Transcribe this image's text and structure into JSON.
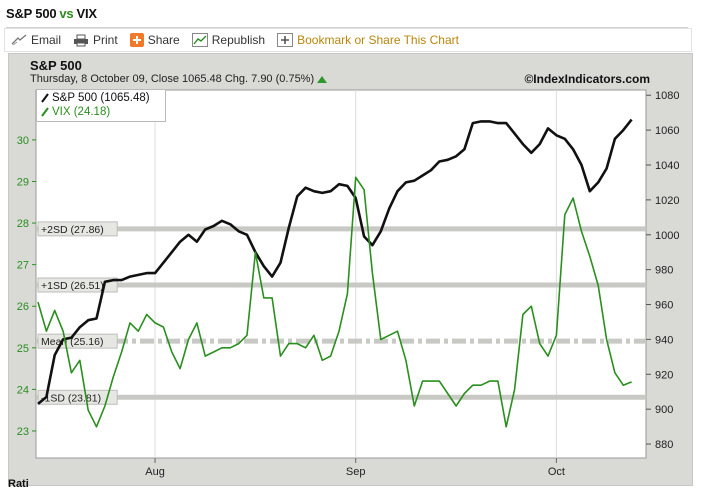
{
  "header": {
    "title_left": "S&P 500",
    "title_vs": "vs",
    "title_right": "VIX"
  },
  "toolbar": {
    "email": "Email",
    "print": "Print",
    "share": "Share",
    "republish": "Republish",
    "bookmark": "Bookmark or Share This Chart"
  },
  "chart_head": {
    "title": "S&P 500",
    "subtitle": "Thursday, 8 October 09, Close 1065.48 Chg. 7.90 (0.75%)",
    "brand": "©IndexIndicators.com"
  },
  "legend": {
    "sp500": "S&P 500 (1065.48)",
    "vix": "VIX (24.18)"
  },
  "footer": {
    "rating_text": "Rati"
  },
  "colors": {
    "sp500": "#111111",
    "vix": "#2a8f1f",
    "band": "#c8c8c4",
    "plot_bg": "#ffffff",
    "frame_bg": "#d9d9d6"
  },
  "chart_data": {
    "type": "line",
    "x_ticks": [
      "Aug",
      "Sep",
      "Oct"
    ],
    "y_left": {
      "label": "",
      "ticks": [
        23,
        24,
        25,
        26,
        27,
        28,
        29,
        30
      ],
      "range": [
        22.35,
        31.2
      ]
    },
    "y_right": {
      "label": "",
      "ticks": [
        880,
        900,
        920,
        940,
        960,
        980,
        1000,
        1020,
        1040,
        1060,
        1080
      ],
      "range": [
        872,
        1083
      ]
    },
    "bands": [
      {
        "label": "+2SD (27.86)",
        "value": 27.86,
        "style": "solid"
      },
      {
        "label": "+1SD (26.51)",
        "value": 26.51,
        "style": "solid"
      },
      {
        "label": "Mean (25.16)",
        "value": 25.16,
        "style": "dashed"
      },
      {
        "label": "-1SD (23.81)",
        "value": 23.81,
        "style": "solid"
      }
    ],
    "x_range": [
      0,
      72
    ],
    "x_tick_positions": [
      14,
      38,
      62
    ],
    "series": [
      {
        "name": "S&P 500",
        "axis": "right",
        "x": [
          0,
          1,
          2,
          3,
          4,
          5,
          6,
          7,
          8,
          9,
          10,
          11,
          12,
          13,
          14,
          15,
          16,
          17,
          18,
          19,
          20,
          21,
          22,
          23,
          24,
          25,
          26,
          27,
          28,
          29,
          30,
          31,
          32,
          33,
          34,
          35,
          36,
          37,
          38,
          39,
          40,
          41,
          42,
          43,
          44,
          45,
          46,
          47,
          48,
          49,
          50,
          51,
          52,
          53,
          54,
          55,
          56,
          57,
          58,
          59,
          60,
          61,
          62,
          63,
          64,
          65,
          66,
          67,
          68,
          69,
          70,
          71
        ],
        "values": [
          903,
          907,
          931,
          940,
          941,
          947,
          951,
          952,
          973,
          974,
          974,
          976,
          977,
          978,
          978,
          984,
          990,
          996,
          1000,
          996,
          1003,
          1005,
          1008,
          1006,
          1002,
          1000,
          990,
          982,
          976,
          984,
          1004,
          1022,
          1027,
          1025,
          1024,
          1025,
          1029,
          1028,
          1021,
          999,
          994,
          1002,
          1015,
          1025,
          1030,
          1031,
          1034,
          1037,
          1042,
          1043,
          1045,
          1049,
          1064,
          1065,
          1065,
          1064,
          1064,
          1058,
          1052,
          1047,
          1052,
          1061,
          1057,
          1055,
          1049,
          1040,
          1025,
          1030,
          1038,
          1055,
          1060,
          1066
        ]
      },
      {
        "name": "VIX",
        "axis": "left",
        "x": [
          0,
          1,
          2,
          3,
          4,
          5,
          6,
          7,
          8,
          9,
          10,
          11,
          12,
          13,
          14,
          15,
          16,
          17,
          18,
          19,
          20,
          21,
          22,
          23,
          24,
          25,
          26,
          27,
          28,
          29,
          30,
          31,
          32,
          33,
          34,
          35,
          36,
          37,
          38,
          39,
          40,
          41,
          42,
          43,
          44,
          45,
          46,
          47,
          48,
          49,
          50,
          51,
          52,
          53,
          54,
          55,
          56,
          57,
          58,
          59,
          60,
          61,
          62,
          63,
          64,
          65,
          66,
          67,
          68,
          69,
          70,
          71
        ],
        "values": [
          26.1,
          25.4,
          25.9,
          25.4,
          24.4,
          24.7,
          23.5,
          23.1,
          23.6,
          24.3,
          24.9,
          25.6,
          25.4,
          25.8,
          25.6,
          25.5,
          24.9,
          24.5,
          25.2,
          25.6,
          24.8,
          24.9,
          25.0,
          25.0,
          25.1,
          25.3,
          27.3,
          26.2,
          26.2,
          24.8,
          25.1,
          25.1,
          25.0,
          25.3,
          24.7,
          24.8,
          25.4,
          26.3,
          29.1,
          28.8,
          26.8,
          25.2,
          25.3,
          25.4,
          24.7,
          23.6,
          24.2,
          24.2,
          24.2,
          23.9,
          23.6,
          23.9,
          24.1,
          24.1,
          24.2,
          24.2,
          23.1,
          24.0,
          25.8,
          26.0,
          25.1,
          24.8,
          25.3,
          28.2,
          28.6,
          27.8,
          27.2,
          26.5,
          25.2,
          24.4,
          24.1,
          24.18
        ]
      }
    ]
  }
}
